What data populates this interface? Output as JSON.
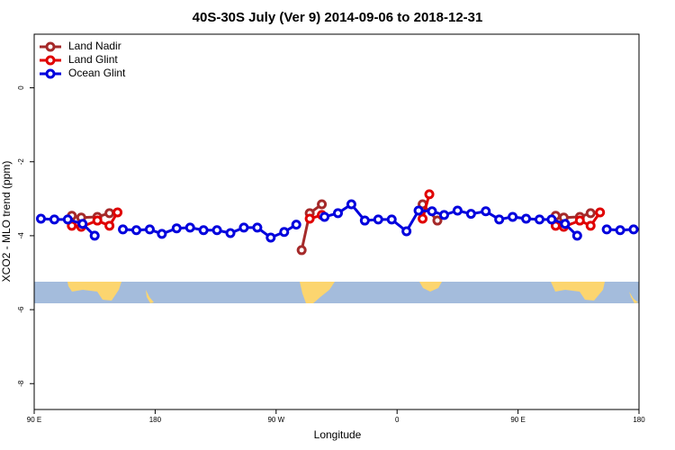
{
  "chart_data": {
    "type": "line",
    "title": "40S-30S July (Ver 9)   2014-09-06 to 2018-12-31",
    "x_label": "Longitude",
    "y_label": "XCO2 - MLO trend (ppm)",
    "xlim": [
      90,
      540
    ],
    "xticks": [
      {
        "value": 90,
        "label": "90 E"
      },
      180,
      {
        "value": 270,
        "label": "90 W"
      },
      {
        "value": 360,
        "label": "0"
      },
      {
        "value": 450,
        "label": "90 E"
      },
      {
        "value": 540,
        "label": "180"
      }
    ],
    "ylim": [
      -8.7,
      1.45
    ],
    "yticks": [
      0,
      -2,
      -4,
      -6,
      -8
    ],
    "legend": "top-left",
    "series": [
      {
        "name": "Land Nadir",
        "color": "#a52a2a",
        "x": [
          118,
          125,
          137,
          146,
          null,
          289,
          295,
          304,
          null,
          379,
          390,
          null,
          478,
          484,
          496,
          504
        ],
        "values": [
          -3.46,
          -3.51,
          -3.49,
          -3.39,
          null,
          -4.39,
          -3.39,
          -3.15,
          null,
          -3.15,
          -3.59,
          null,
          -3.46,
          -3.51,
          -3.49,
          -3.39
        ]
      },
      {
        "name": "Land Glint",
        "color": "#e00000",
        "x": [
          118,
          125,
          137,
          146,
          152,
          null,
          295,
          304,
          null,
          379,
          384,
          null,
          478,
          484,
          496,
          504,
          511
        ],
        "values": [
          -3.73,
          -3.76,
          -3.59,
          -3.73,
          -3.37,
          null,
          -3.54,
          -3.44,
          null,
          -3.54,
          -2.88,
          null,
          -3.73,
          -3.76,
          -3.59,
          -3.73,
          -3.37
        ]
      },
      {
        "name": "Ocean Glint",
        "color": "#0000dd",
        "x": [
          95,
          105,
          115,
          126,
          135,
          null,
          156,
          166,
          176,
          185,
          196,
          206,
          216,
          226,
          236,
          246,
          256,
          266,
          276,
          285,
          null,
          306,
          316,
          326,
          336,
          346,
          356,
          367,
          376,
          386,
          395,
          405,
          415,
          426,
          436,
          446,
          456,
          466,
          475,
          485,
          494,
          null,
          516,
          526,
          536
        ],
        "values": [
          -3.54,
          -3.56,
          -3.56,
          -3.68,
          -4.0,
          null,
          -3.83,
          -3.85,
          -3.83,
          -3.95,
          -3.8,
          -3.78,
          -3.85,
          -3.85,
          -3.93,
          -3.78,
          -3.78,
          -4.05,
          -3.9,
          -3.7,
          null,
          -3.49,
          -3.39,
          -3.15,
          -3.59,
          -3.56,
          -3.56,
          -3.88,
          -3.32,
          -3.34,
          -3.44,
          -3.32,
          -3.41,
          -3.34,
          -3.56,
          -3.49,
          -3.54,
          -3.56,
          -3.56,
          -3.68,
          -4.0,
          null,
          -3.83,
          -3.85,
          -3.83
        ]
      }
    ]
  }
}
